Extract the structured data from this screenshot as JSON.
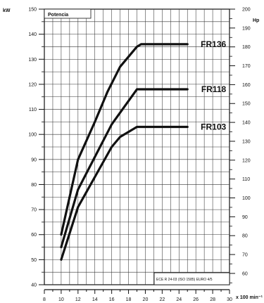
{
  "chart_data": {
    "type": "line",
    "title": "Potencia",
    "xlabel": "x 100 min⁻¹",
    "ylabel": "kW",
    "ylabel_right": "Hp",
    "xlim": [
      8,
      30
    ],
    "ylim": [
      40,
      150
    ],
    "ylim_right": [
      54,
      200
    ],
    "x_ticks": [
      8,
      10,
      12,
      14,
      16,
      18,
      20,
      22,
      24,
      26,
      28,
      30
    ],
    "y_ticks": [
      40,
      50,
      60,
      70,
      80,
      90,
      100,
      110,
      120,
      130,
      140,
      150
    ],
    "y_ticks_right": [
      60,
      70,
      80,
      90,
      100,
      110,
      120,
      130,
      140,
      150,
      160,
      170,
      180,
      190,
      200
    ],
    "grid": true,
    "annotation": "ECE R 24-03 (ISO 1585) EURO 4/5",
    "series": [
      {
        "name": "FR136",
        "x": [
          10,
          12,
          14,
          15.5,
          17,
          18,
          19,
          19.5,
          25
        ],
        "y": [
          60,
          90,
          105,
          117,
          127,
          131,
          135,
          136,
          136
        ]
      },
      {
        "name": "FR118",
        "x": [
          10,
          12,
          14,
          16,
          17.5,
          19,
          25
        ],
        "y": [
          55,
          78,
          91,
          104,
          111,
          118,
          118
        ]
      },
      {
        "name": "FR103",
        "x": [
          10,
          12,
          14,
          16,
          17,
          18,
          19,
          25
        ],
        "y": [
          50,
          71,
          83,
          95,
          99,
          101,
          103,
          103
        ]
      }
    ]
  }
}
